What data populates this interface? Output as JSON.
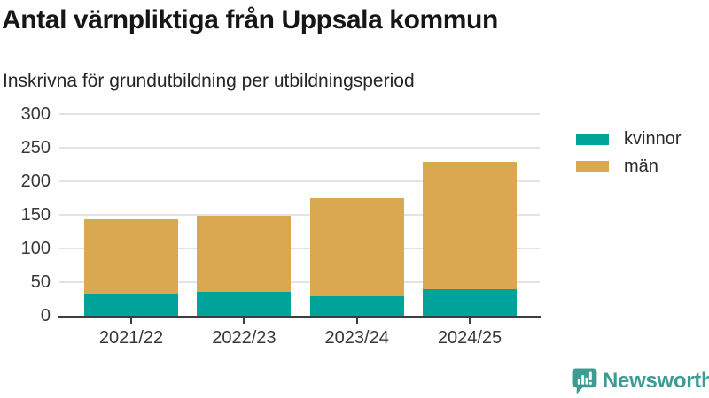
{
  "chart_data": {
    "type": "bar",
    "stacked": true,
    "title": "Antal värnpliktiga från Uppsala kommun",
    "subtitle": "Inskrivna för grundutbildning per utbildningsperiod",
    "categories": [
      "2021/22",
      "2022/23",
      "2023/24",
      "2024/25"
    ],
    "series": [
      {
        "name": "kvinnor",
        "color": "#00a39a",
        "values": [
          33,
          36,
          29,
          40
        ]
      },
      {
        "name": "män",
        "color": "#d9a850",
        "values": [
          110,
          113,
          146,
          189
        ]
      }
    ],
    "stacked_totals": [
      143,
      149,
      175,
      229
    ],
    "ylim": [
      0,
      300
    ],
    "yticks": [
      0,
      50,
      100,
      150,
      200,
      250,
      300
    ],
    "xlabel": "",
    "ylabel": "",
    "grid": true,
    "legend_position": "right-top"
  },
  "colors": {
    "axis": "#3e3e3e",
    "gridline": "#e3e3e3",
    "tick_label": "#383838",
    "brand": "#3e9b93"
  },
  "branding": {
    "text": "Newsworthy",
    "icon": "newsworthy-chart-bubble-icon"
  }
}
